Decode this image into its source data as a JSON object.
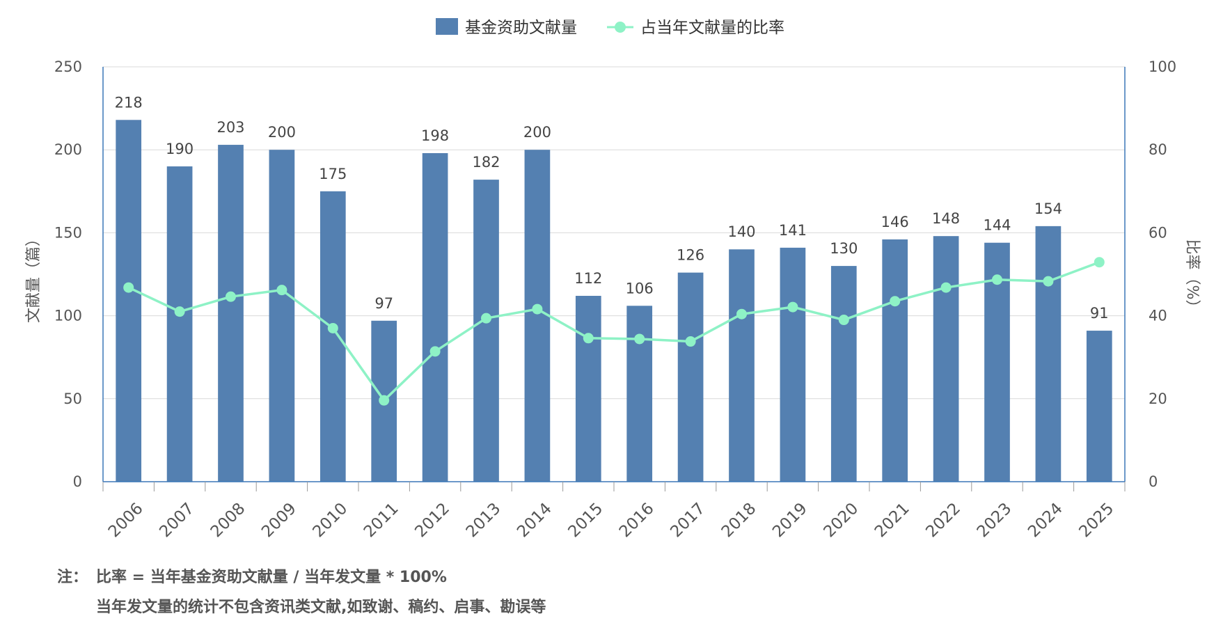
{
  "chart_data": {
    "type": "bar",
    "categories": [
      "2006",
      "2007",
      "2008",
      "2009",
      "2010",
      "2011",
      "2012",
      "2013",
      "2014",
      "2015",
      "2016",
      "2017",
      "2018",
      "2019",
      "2020",
      "2021",
      "2022",
      "2023",
      "2024",
      "2025"
    ],
    "series": [
      {
        "name": "基金资助文献量",
        "type": "bar",
        "axis": "left",
        "color": "#5480b1",
        "values": [
          218,
          190,
          203,
          200,
          175,
          97,
          198,
          182,
          200,
          112,
          106,
          126,
          140,
          141,
          130,
          146,
          148,
          144,
          154,
          91
        ]
      },
      {
        "name": "占当年文献量的比率",
        "type": "line",
        "axis": "right",
        "color": "#8ef2c6",
        "values": [
          46.8,
          41.0,
          44.6,
          46.2,
          37.0,
          19.6,
          31.4,
          39.4,
          41.6,
          34.6,
          34.4,
          33.8,
          40.4,
          42.1,
          39.0,
          43.5,
          46.8,
          48.7,
          48.3,
          52.9
        ]
      }
    ],
    "ylabel": "文献量（篇）",
    "y2label": "比率（%）",
    "ylim": [
      0,
      250
    ],
    "y2lim": [
      0,
      100
    ],
    "yticks": [
      0,
      50,
      100,
      150,
      200,
      250
    ],
    "y2ticks": [
      0,
      20,
      40,
      60,
      80,
      100
    ],
    "grid": true,
    "legend": "top-center"
  },
  "notes": {
    "prefix": "注：",
    "line1": "比率 = 当年基金资助文献量 / 当年发文量 * 100%",
    "line2": "当年发文量的统计不包含资讯类文献,如致谢、稿约、启事、勘误等"
  }
}
